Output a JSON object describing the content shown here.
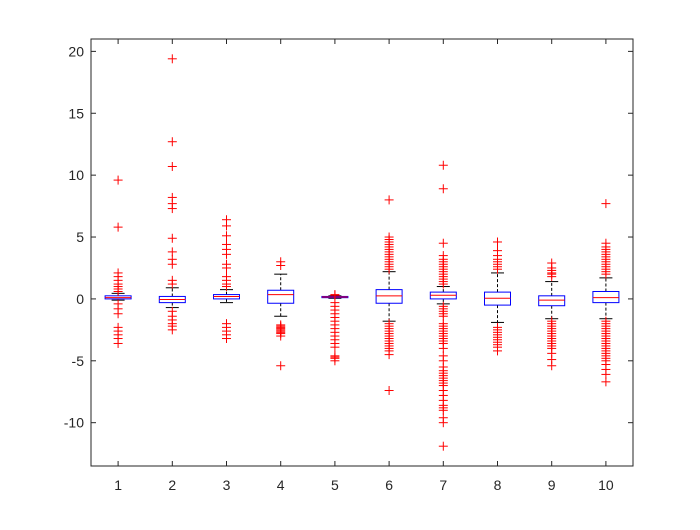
{
  "figure": {
    "background": "#ffffff",
    "axes_color": "#262626"
  },
  "chart_data": {
    "type": "boxplot",
    "title": "",
    "xlabel": "",
    "ylabel": "",
    "categories": [
      "1",
      "2",
      "3",
      "4",
      "5",
      "6",
      "7",
      "8",
      "9",
      "10"
    ],
    "xlim": [
      0.5,
      10.5
    ],
    "ylim": [
      -13.5,
      21
    ],
    "yticks": [
      -10,
      -5,
      0,
      5,
      10,
      15,
      20
    ],
    "yticklabels": [
      "-10",
      "-5",
      "0",
      "5",
      "10",
      "15",
      "20"
    ],
    "grid": false,
    "box_color": "#0000ff",
    "median_color": "#ff0000",
    "whisker_color": "#000000",
    "outlier_color": "#ff0000",
    "outlier_marker": "+",
    "boxes": [
      {
        "label": "1",
        "q1": 0.0,
        "median": 0.1,
        "q3": 0.25,
        "whisker_low": -0.1,
        "whisker_high": 0.45,
        "outliers": [
          9.6,
          5.8,
          2.1,
          1.8,
          1.5,
          1.2,
          1.0,
          0.8,
          0.6,
          -0.4,
          -0.8,
          -1.2,
          -2.3,
          -2.6,
          -2.9,
          -3.2,
          -3.6
        ]
      },
      {
        "label": "2",
        "q1": -0.3,
        "median": -0.05,
        "q3": 0.2,
        "whisker_low": -0.7,
        "whisker_high": 0.9,
        "outliers": [
          19.4,
          12.7,
          10.7,
          8.2,
          7.7,
          7.3,
          4.9,
          3.8,
          3.2,
          2.8,
          1.5,
          1.2,
          -1.0,
          -1.4,
          -1.7,
          -2.0,
          -2.2,
          -2.5
        ]
      },
      {
        "label": "3",
        "q1": 0.0,
        "median": 0.2,
        "q3": 0.35,
        "whisker_low": -0.3,
        "whisker_high": 0.75,
        "outliers": [
          6.4,
          5.9,
          5.1,
          4.4,
          4.0,
          3.6,
          2.8,
          2.5,
          1.8,
          1.5,
          1.2,
          1.0,
          -2.0,
          -2.3,
          -2.6,
          -2.9,
          -3.2
        ]
      },
      {
        "label": "4",
        "q1": -0.35,
        "median": 0.35,
        "q3": 0.7,
        "whisker_low": -1.4,
        "whisker_high": 2.0,
        "outliers": [
          3.0,
          2.7,
          -2.1,
          -2.2,
          -2.3,
          -2.4,
          -2.5,
          -2.6,
          -2.7,
          -2.8,
          -3.0,
          -5.4
        ]
      },
      {
        "label": "5",
        "q1": 0.1,
        "median": 0.15,
        "q3": 0.2,
        "whisker_low": 0.05,
        "whisker_high": 0.25,
        "outliers": [
          0.35,
          0.3,
          -0.3,
          -0.6,
          -0.9,
          -1.2,
          -1.5,
          -1.8,
          -2.1,
          -2.4,
          -2.7,
          -3.0,
          -3.3,
          -3.6,
          -3.9,
          -4.6,
          -4.7,
          -4.8,
          -5.0
        ]
      },
      {
        "label": "6",
        "q1": -0.35,
        "median": 0.25,
        "q3": 0.75,
        "whisker_low": -1.8,
        "whisker_high": 2.2,
        "outliers": [
          8.0,
          5.0,
          4.8,
          4.6,
          4.4,
          4.2,
          4.0,
          3.8,
          3.6,
          3.4,
          3.2,
          3.0,
          2.8,
          2.6,
          2.4,
          -2.0,
          -2.2,
          -2.4,
          -2.6,
          -2.8,
          -3.0,
          -3.2,
          -3.4,
          -3.6,
          -3.8,
          -4.0,
          -4.2,
          -4.5,
          -7.4
        ]
      },
      {
        "label": "7",
        "q1": 0.0,
        "median": 0.3,
        "q3": 0.55,
        "whisker_low": -0.4,
        "whisker_high": 1.0,
        "outliers": [
          10.8,
          8.9,
          4.5,
          3.5,
          3.2,
          3.0,
          2.8,
          2.6,
          2.4,
          2.2,
          2.0,
          1.8,
          1.6,
          1.4,
          1.2,
          -0.6,
          -0.8,
          -1.0,
          -1.2,
          -1.4,
          -2.0,
          -2.2,
          -2.4,
          -2.6,
          -2.8,
          -3.0,
          -3.2,
          -3.4,
          -3.6,
          -4.0,
          -4.6,
          -5.0,
          -5.5,
          -5.8,
          -6.0,
          -6.2,
          -6.4,
          -6.6,
          -6.8,
          -7.0,
          -7.4,
          -7.8,
          -8.2,
          -8.6,
          -8.8,
          -9.0,
          -9.6,
          -10.0,
          -11.9
        ]
      },
      {
        "label": "8",
        "q1": -0.5,
        "median": 0.05,
        "q3": 0.55,
        "whisker_low": -1.9,
        "whisker_high": 2.1,
        "outliers": [
          4.6,
          3.9,
          3.5,
          3.2,
          3.0,
          2.8,
          2.6,
          2.4,
          -2.3,
          -2.5,
          -2.7,
          -2.9,
          -3.1,
          -3.3,
          -3.5,
          -3.7,
          -3.9,
          -4.2
        ]
      },
      {
        "label": "9",
        "q1": -0.55,
        "median": -0.1,
        "q3": 0.25,
        "whisker_low": -1.6,
        "whisker_high": 1.4,
        "outliers": [
          2.9,
          2.5,
          2.3,
          2.1,
          2.0,
          1.8,
          -1.8,
          -2.0,
          -2.2,
          -2.4,
          -2.6,
          -2.8,
          -3.0,
          -3.2,
          -3.4,
          -3.6,
          -3.8,
          -4.0,
          -4.4,
          -4.9,
          -5.4
        ]
      },
      {
        "label": "10",
        "q1": -0.3,
        "median": 0.1,
        "q3": 0.6,
        "whisker_low": -1.6,
        "whisker_high": 1.7,
        "outliers": [
          7.7,
          4.5,
          4.2,
          4.0,
          3.8,
          3.6,
          3.4,
          3.2,
          3.0,
          2.8,
          2.6,
          2.4,
          2.2,
          2.0,
          -1.8,
          -2.0,
          -2.2,
          -2.4,
          -2.6,
          -2.8,
          -3.0,
          -3.2,
          -3.4,
          -3.6,
          -3.8,
          -4.0,
          -4.2,
          -4.4,
          -4.6,
          -4.8,
          -5.0,
          -5.3,
          -5.7,
          -6.1,
          -6.7
        ]
      }
    ]
  }
}
